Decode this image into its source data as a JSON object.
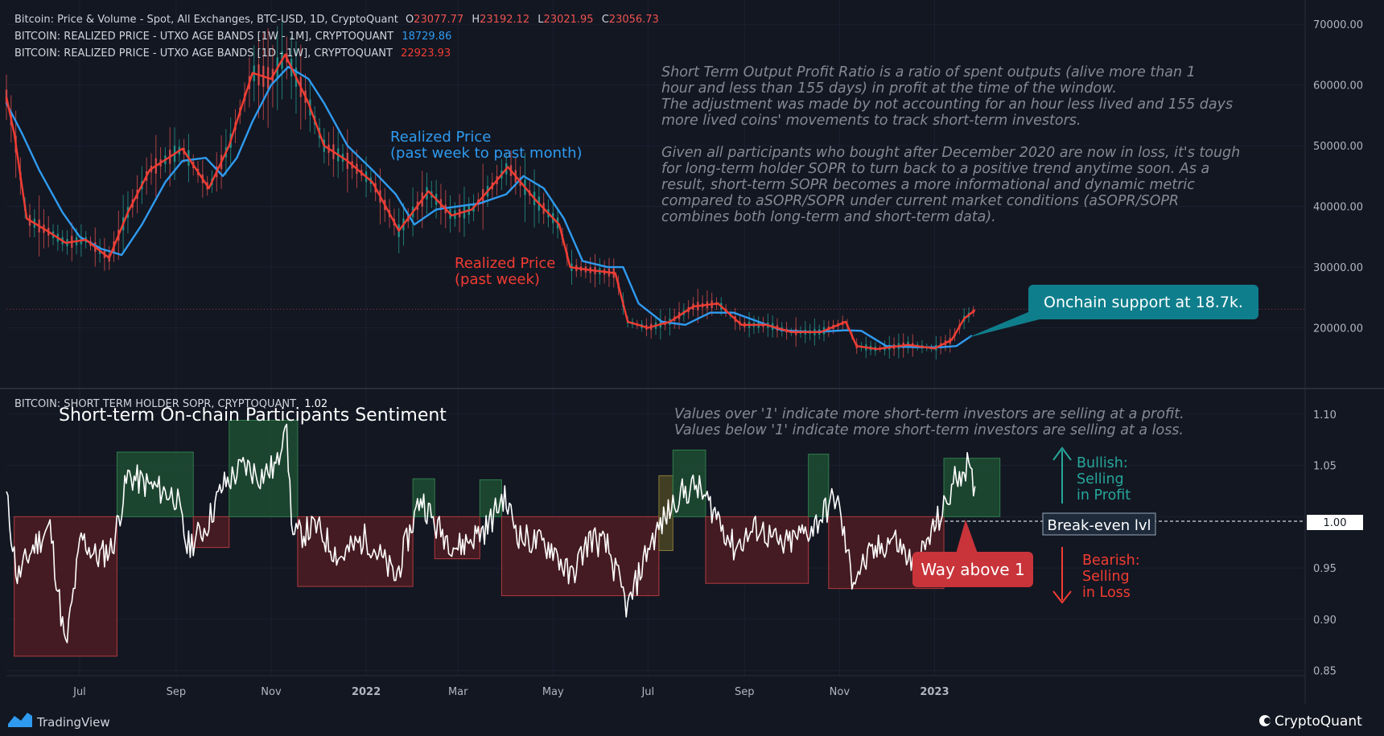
{
  "legend": {
    "main": {
      "title": "Bitcoin: Price & Volume - Spot, All Exchanges, BTC-USD, 1D, CryptoQuant",
      "o_label": "O",
      "o_value": "23077.77",
      "h_label": "H",
      "h_value": "23192.12",
      "l_label": "L",
      "l_value": "23021.95",
      "c_label": "C",
      "c_value": "23056.73"
    },
    "rp_month": {
      "title": "BITCOIN: REALIZED PRICE - UTXO AGE BANDS [1W - 1M], CRYPTOQUANT",
      "value": "18729.86"
    },
    "rp_week": {
      "title": "BITCOIN: REALIZED PRICE - UTXO AGE BANDS [1D - 1W], CRYPTOQUANT",
      "value": "22923.93"
    },
    "sopr": {
      "title": "BITCOIN: SHORT TERM HOLDER SOPR, CRYPTOQUANT",
      "value": "1.02"
    }
  },
  "annotations": {
    "rp_month_label_1": "Realized Price",
    "rp_month_label_2": "(past week to past month)",
    "rp_week_label_1": "Realized Price",
    "rp_week_label_2": "(past week)",
    "description": [
      "Short Term Output Profit Ratio is a ratio of spent outputs (alive more than 1",
      "hour and less than 155 days) in profit at the time of the window.",
      "The adjustment was made by not accounting for an hour less lived and 155 days",
      "more lived coins' movements to track short-term investors.",
      "",
      "Given all participants who bought after December 2020 are now in loss, it's tough",
      "for long-term holder SOPR to turn back to a positive trend anytime soon. As a",
      "result, short-term SOPR becomes a more informational and dynamic metric",
      "compared to aSOPR/SOPR under current market conditions (aSOPR/SOPR",
      "combines both long-term and short-term data)."
    ],
    "support_callout": "Onchain support at 18.7k.",
    "sentiment_title": "Short-term On-chain Participants Sentiment",
    "values_note_1": "Values over '1' indicate more short-term investors are selling at a profit.",
    "values_note_2": "Values below '1' indicate more short-term investors are selling at a loss.",
    "bullish": [
      "Bullish:",
      "Selling",
      "in Profit"
    ],
    "bearish": [
      "Bearish:",
      "Selling",
      "in Loss"
    ],
    "breakeven": "Break-even lvl",
    "way_above": "Way above 1"
  },
  "footer": {
    "tradingview": "TradingView",
    "cryptoquant": "CryptoQuant"
  },
  "colors": {
    "background": "#131722",
    "price_up": "#26a69a",
    "price_down": "#ef5350",
    "realized_price_month": "#2f9bf0",
    "realized_price_week": "#f23c32",
    "sopr": "#ffffff",
    "profit_box": "#1e4d33",
    "loss_box": "#4e1c22",
    "callout": "#0f7e8c",
    "bearish": "#f23c32",
    "bullish": "#26a69a"
  },
  "chart_data": [
    {
      "type": "line",
      "name": "price_pane",
      "y_axis_ticks": [
        "70000.00",
        "60000.00",
        "50000.00",
        "40000.00",
        "30000.00",
        "20000.00"
      ],
      "ylim": [
        10000,
        74000
      ],
      "x_range": [
        "2021-05-15",
        "2023-08-27"
      ],
      "series": [
        {
          "name": "Realized Price (past week to past month)",
          "points": [
            [
              "2021-05-15",
              57000
            ],
            [
              "2021-05-25",
              52000
            ],
            [
              "2021-06-05",
              46000
            ],
            [
              "2021-06-20",
              39000
            ],
            [
              "2021-07-01",
              35000
            ],
            [
              "2021-07-15",
              33000
            ],
            [
              "2021-07-28",
              32000
            ],
            [
              "2021-08-10",
              37000
            ],
            [
              "2021-08-25",
              44000
            ],
            [
              "2021-09-05",
              47500
            ],
            [
              "2021-09-20",
              48000
            ],
            [
              "2021-10-01",
              45000
            ],
            [
              "2021-10-10",
              48000
            ],
            [
              "2021-10-20",
              54000
            ],
            [
              "2021-11-01",
              60000
            ],
            [
              "2021-11-12",
              63000
            ],
            [
              "2021-11-25",
              61000
            ],
            [
              "2021-12-05",
              57000
            ],
            [
              "2021-12-20",
              50000
            ],
            [
              "2022-01-05",
              46000
            ],
            [
              "2022-01-20",
              42000
            ],
            [
              "2022-02-01",
              37000
            ],
            [
              "2022-02-15",
              39500
            ],
            [
              "2022-03-01",
              40000
            ],
            [
              "2022-03-15",
              40500
            ],
            [
              "2022-04-01",
              42000
            ],
            [
              "2022-04-12",
              45000
            ],
            [
              "2022-04-25",
              43000
            ],
            [
              "2022-05-08",
              38000
            ],
            [
              "2022-05-20",
              31000
            ],
            [
              "2022-06-05",
              30000
            ],
            [
              "2022-06-15",
              30000
            ],
            [
              "2022-06-25",
              24000
            ],
            [
              "2022-07-10",
              21000
            ],
            [
              "2022-07-25",
              20500
            ],
            [
              "2022-08-10",
              22500
            ],
            [
              "2022-08-25",
              22500
            ],
            [
              "2022-09-10",
              21000
            ],
            [
              "2022-09-25",
              19600
            ],
            [
              "2022-10-15",
              19300
            ],
            [
              "2022-11-05",
              19600
            ],
            [
              "2022-11-15",
              19500
            ],
            [
              "2022-12-01",
              17000
            ],
            [
              "2022-12-20",
              16800
            ],
            [
              "2023-01-05",
              16800
            ],
            [
              "2023-01-15",
              17000
            ],
            [
              "2023-01-25",
              18730
            ]
          ]
        },
        {
          "name": "Realized Price (past week)",
          "points": [
            [
              "2021-05-15",
              58000
            ],
            [
              "2021-05-20",
              52000
            ],
            [
              "2021-05-28",
              38000
            ],
            [
              "2021-06-10",
              36000
            ],
            [
              "2021-06-22",
              34000
            ],
            [
              "2021-07-05",
              34500
            ],
            [
              "2021-07-20",
              31500
            ],
            [
              "2021-08-01",
              39000
            ],
            [
              "2021-08-15",
              46000
            ],
            [
              "2021-09-05",
              49500
            ],
            [
              "2021-09-22",
              43000
            ],
            [
              "2021-10-05",
              50000
            ],
            [
              "2021-10-20",
              62000
            ],
            [
              "2021-11-01",
              61000
            ],
            [
              "2021-11-10",
              65000
            ],
            [
              "2021-11-25",
              57000
            ],
            [
              "2021-12-05",
              50000
            ],
            [
              "2021-12-20",
              47500
            ],
            [
              "2022-01-05",
              44000
            ],
            [
              "2022-01-22",
              36000
            ],
            [
              "2022-02-10",
              42500
            ],
            [
              "2022-02-25",
              38500
            ],
            [
              "2022-03-10",
              39500
            ],
            [
              "2022-03-25",
              44000
            ],
            [
              "2022-04-02",
              46500
            ],
            [
              "2022-04-20",
              41000
            ],
            [
              "2022-05-05",
              37000
            ],
            [
              "2022-05-12",
              30000
            ],
            [
              "2022-05-25",
              29500
            ],
            [
              "2022-06-10",
              29000
            ],
            [
              "2022-06-18",
              21000
            ],
            [
              "2022-07-01",
              20000
            ],
            [
              "2022-07-15",
              21000
            ],
            [
              "2022-07-30",
              23500
            ],
            [
              "2022-08-15",
              24000
            ],
            [
              "2022-08-30",
              20500
            ],
            [
              "2022-09-15",
              20500
            ],
            [
              "2022-10-01",
              19300
            ],
            [
              "2022-10-20",
              19300
            ],
            [
              "2022-11-05",
              21000
            ],
            [
              "2022-11-12",
              17000
            ],
            [
              "2022-11-25",
              16500
            ],
            [
              "2022-12-15",
              17200
            ],
            [
              "2023-01-01",
              16600
            ],
            [
              "2023-01-12",
              18000
            ],
            [
              "2023-01-20",
              21500
            ],
            [
              "2023-01-27",
              22924
            ]
          ]
        }
      ],
      "support_level": 18700,
      "last_price": 23056.73
    },
    {
      "type": "line",
      "name": "sopr_pane",
      "y_axis_ticks": [
        "1.10",
        "1.05",
        "1.00",
        "0.95",
        "0.90",
        "0.85"
      ],
      "ylim": [
        0.845,
        1.125
      ],
      "baseline": 1.0,
      "x_tick_labels": [
        "Jul",
        "Sep",
        "Nov",
        "2022",
        "Mar",
        "May",
        "Jul",
        "Sep",
        "Nov",
        "2023"
      ],
      "x_tick_dates": [
        "2021-07-01",
        "2021-09-01",
        "2021-11-01",
        "2022-01-01",
        "2022-03-01",
        "2022-05-01",
        "2022-07-01",
        "2022-09-01",
        "2022-11-01",
        "2023-01-01"
      ],
      "series": [
        {
          "name": "Short Term Holder SOPR",
          "points": [
            [
              "2021-05-15",
              1.02
            ],
            [
              "2021-05-22",
              0.94
            ],
            [
              "2021-06-01",
              0.97
            ],
            [
              "2021-06-12",
              0.99
            ],
            [
              "2021-06-22",
              0.87
            ],
            [
              "2021-07-02",
              0.98
            ],
            [
              "2021-07-12",
              0.96
            ],
            [
              "2021-07-22",
              0.97
            ],
            [
              "2021-08-01",
              1.04
            ],
            [
              "2021-08-15",
              1.03
            ],
            [
              "2021-09-01",
              1.02
            ],
            [
              "2021-09-08",
              0.97
            ],
            [
              "2021-09-20",
              0.99
            ],
            [
              "2021-10-01",
              1.03
            ],
            [
              "2021-10-15",
              1.05
            ],
            [
              "2021-10-25",
              1.04
            ],
            [
              "2021-11-05",
              1.05
            ],
            [
              "2021-11-10",
              1.1
            ],
            [
              "2021-11-15",
              0.98
            ],
            [
              "2021-11-30",
              0.99
            ],
            [
              "2021-12-15",
              0.96
            ],
            [
              "2022-01-01",
              0.98
            ],
            [
              "2022-01-20",
              0.94
            ],
            [
              "2022-02-05",
              1.02
            ],
            [
              "2022-02-15",
              0.99
            ],
            [
              "2022-03-01",
              0.97
            ],
            [
              "2022-03-20",
              0.99
            ],
            [
              "2022-03-30",
              1.02
            ],
            [
              "2022-04-10",
              0.98
            ],
            [
              "2022-05-01",
              0.97
            ],
            [
              "2022-05-12",
              0.94
            ],
            [
              "2022-05-25",
              0.98
            ],
            [
              "2022-06-05",
              0.97
            ],
            [
              "2022-06-18",
              0.91
            ],
            [
              "2022-07-01",
              0.97
            ],
            [
              "2022-07-20",
              1.02
            ],
            [
              "2022-08-01",
              1.03
            ],
            [
              "2022-08-15",
              1.0
            ],
            [
              "2022-08-25",
              0.97
            ],
            [
              "2022-09-10",
              0.99
            ],
            [
              "2022-09-25",
              0.97
            ],
            [
              "2022-10-15",
              0.99
            ],
            [
              "2022-10-30",
              1.02
            ],
            [
              "2022-11-09",
              0.94
            ],
            [
              "2022-11-20",
              0.96
            ],
            [
              "2022-12-05",
              0.98
            ],
            [
              "2022-12-20",
              0.95
            ],
            [
              "2023-01-01",
              0.99
            ],
            [
              "2023-01-08",
              1.01
            ],
            [
              "2023-01-15",
              1.04
            ],
            [
              "2023-01-22",
              1.05
            ],
            [
              "2023-01-27",
              1.02
            ]
          ]
        }
      ],
      "regimes": [
        {
          "kind": "loss",
          "start": "2021-05-20",
          "end": "2021-07-25",
          "low": 0.864
        },
        {
          "kind": "profit",
          "start": "2021-07-25",
          "end": "2021-09-12",
          "high": 1.063
        },
        {
          "kind": "loss",
          "start": "2021-09-12",
          "end": "2021-10-05",
          "low": 0.97
        },
        {
          "kind": "profit",
          "start": "2021-10-05",
          "end": "2021-11-18",
          "high": 1.094
        },
        {
          "kind": "loss",
          "start": "2021-11-18",
          "end": "2022-01-31",
          "low": 0.932
        },
        {
          "kind": "profit",
          "start": "2022-01-31",
          "end": "2022-02-14",
          "high": 1.037
        },
        {
          "kind": "loss",
          "start": "2022-02-14",
          "end": "2022-03-15",
          "low": 0.959
        },
        {
          "kind": "profit",
          "start": "2022-03-15",
          "end": "2022-03-29",
          "high": 1.036
        },
        {
          "kind": "loss",
          "start": "2022-03-29",
          "end": "2022-07-08",
          "low": 0.923
        },
        {
          "kind": "neutral",
          "start": "2022-07-08",
          "end": "2022-07-17",
          "high": 1.04,
          "low": 0.967
        },
        {
          "kind": "profit",
          "start": "2022-07-17",
          "end": "2022-08-07",
          "high": 1.065
        },
        {
          "kind": "loss",
          "start": "2022-08-07",
          "end": "2022-10-12",
          "low": 0.935
        },
        {
          "kind": "profit",
          "start": "2022-10-12",
          "end": "2022-10-25",
          "high": 1.061
        },
        {
          "kind": "loss",
          "start": "2022-10-25",
          "end": "2023-01-07",
          "low": 0.93
        },
        {
          "kind": "profit",
          "start": "2023-01-07",
          "end": "2023-02-12",
          "high": 1.057
        }
      ]
    }
  ]
}
